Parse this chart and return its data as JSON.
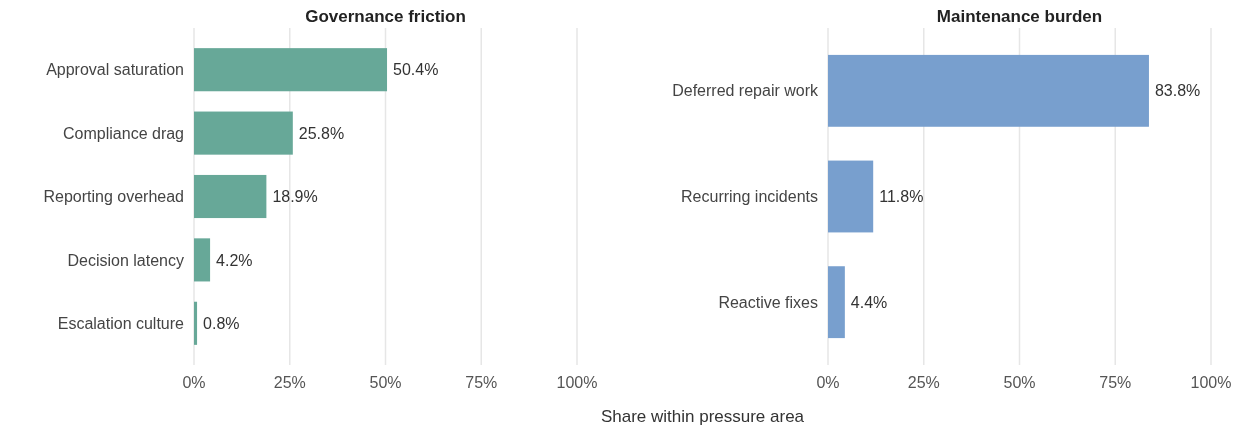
{
  "chart_data": [
    {
      "type": "bar",
      "orientation": "horizontal",
      "title": "Governance friction",
      "xlabel": "Share within pressure area",
      "categories": [
        "Approval saturation",
        "Compliance drag",
        "Reporting overhead",
        "Decision latency",
        "Escalation culture"
      ],
      "series": [
        {
          "color": "#67a898",
          "values": [
            50.4,
            25.8,
            18.9,
            4.2,
            0.8
          ],
          "value_labels": [
            "50.4%",
            "25.8%",
            "18.9%",
            "4.2%",
            "0.8%"
          ]
        }
      ],
      "xlim": [
        0,
        100
      ],
      "xticks": [
        {
          "value": 0,
          "label": "0%"
        },
        {
          "value": 25,
          "label": "25%"
        },
        {
          "value": 50,
          "label": "50%"
        },
        {
          "value": 75,
          "label": "75%"
        },
        {
          "value": 100,
          "label": "100%"
        }
      ],
      "grid": "x"
    },
    {
      "type": "bar",
      "orientation": "horizontal",
      "title": "Maintenance burden",
      "categories": [
        "Deferred repair work",
        "Recurring incidents",
        "Reactive fixes"
      ],
      "series": [
        {
          "color": "#789fce",
          "values": [
            83.8,
            11.8,
            4.4
          ],
          "value_labels": [
            "83.8%",
            "11.8%",
            "4.4%"
          ]
        }
      ],
      "xlim": [
        0,
        100
      ],
      "xticks": [
        {
          "value": 0,
          "label": "0%"
        },
        {
          "value": 25,
          "label": "25%"
        },
        {
          "value": 50,
          "label": "50%"
        },
        {
          "value": 75,
          "label": "75%"
        },
        {
          "value": 100,
          "label": "100%"
        }
      ],
      "grid": "x"
    }
  ]
}
